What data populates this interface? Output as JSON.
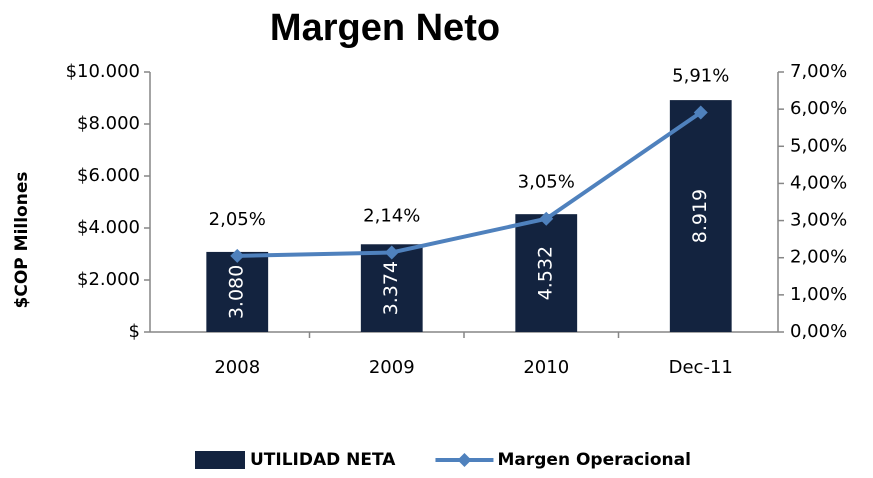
{
  "chart_data": {
    "type": "bar",
    "title": "Margen Neto",
    "y_label": "$COP Millones",
    "categories": [
      "2008",
      "2009",
      "2010",
      "Dec-11"
    ],
    "series": [
      {
        "name": "UTILIDAD NETA",
        "type": "bar",
        "color": "#13233f",
        "values": [
          3080,
          3374,
          4532,
          8919
        ],
        "value_labels": [
          "3.080",
          "3.374",
          "4.532",
          "8.919"
        ]
      },
      {
        "name": "Margen Operacional",
        "type": "line",
        "axis": "y2",
        "color": "#4f81bd",
        "values": [
          2.05,
          2.14,
          3.05,
          5.91
        ],
        "value_labels": [
          "2,05%",
          "2,14%",
          "3,05%",
          "5,91%"
        ]
      }
    ],
    "ylim": [
      0,
      10000
    ],
    "yticks": [
      {
        "value": 0,
        "label": "$"
      },
      {
        "value": 2000,
        "label": "$2.000"
      },
      {
        "value": 4000,
        "label": "$4.000"
      },
      {
        "value": 6000,
        "label": "$6.000"
      },
      {
        "value": 8000,
        "label": "$8.000"
      },
      {
        "value": 10000,
        "label": "$10.000"
      }
    ],
    "y2lim": [
      0,
      7
    ],
    "y2ticks": [
      {
        "value": 0,
        "label": "0,00%"
      },
      {
        "value": 1,
        "label": "1,00%"
      },
      {
        "value": 2,
        "label": "2,00%"
      },
      {
        "value": 3,
        "label": "3,00%"
      },
      {
        "value": 4,
        "label": "4,00%"
      },
      {
        "value": 5,
        "label": "5,00%"
      },
      {
        "value": 6,
        "label": "6,00%"
      },
      {
        "value": 7,
        "label": "7,00%"
      }
    ],
    "legend": "bottom"
  }
}
